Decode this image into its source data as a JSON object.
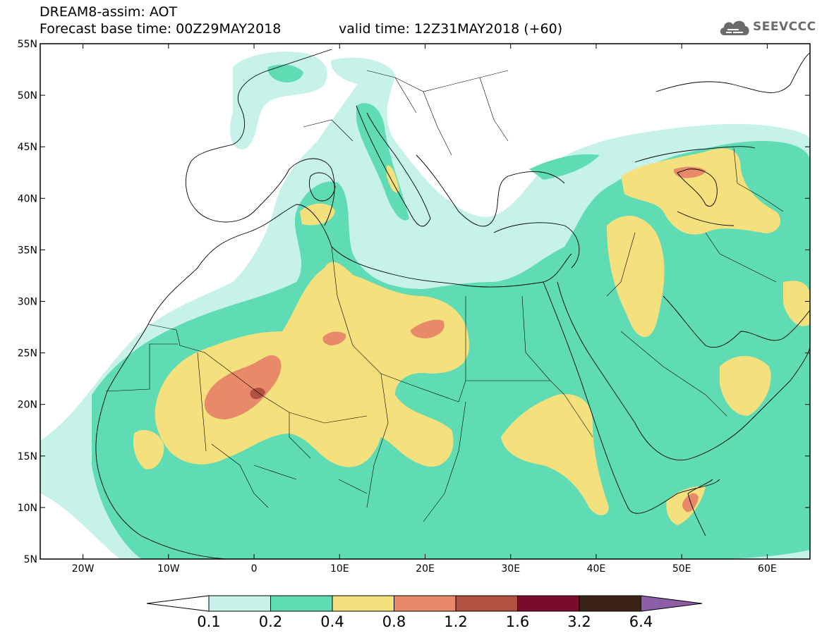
{
  "header": {
    "title_line1": "DREAM8-assim: AOT",
    "forecast_base": "Forecast base time: 00Z29MAY2018",
    "valid_time": "valid time: 12Z31MAY2018 (+60)",
    "logo_text": "SEEVCCC"
  },
  "map": {
    "projection": "lat-lon",
    "lon_range": [
      -25,
      65
    ],
    "lat_range": [
      5,
      55
    ],
    "lat_ticks": [
      "5N",
      "10N",
      "15N",
      "20N",
      "25N",
      "30N",
      "35N",
      "40N",
      "45N",
      "50N",
      "55N"
    ],
    "lon_ticks": [
      "20W",
      "10W",
      "0",
      "10E",
      "20E",
      "30E",
      "40E",
      "50E",
      "60E"
    ]
  },
  "colorbar": {
    "labels": [
      "0.1",
      "0.2",
      "0.4",
      "0.8",
      "1.2",
      "1.6",
      "3.2",
      "6.4"
    ],
    "colors": [
      "#c6f2ea",
      "#5fdcb4",
      "#f4e07c",
      "#e8896a",
      "#b1513f",
      "#7a0b2b",
      "#3a2418",
      "#8e5fa8"
    ],
    "under_color": "#ffffff",
    "over_color": "#8e5fa8"
  },
  "fields": {
    "level_0.1": "#c6f2ea",
    "level_0.2": "#5fdcb4",
    "level_0.4": "#f4e07c",
    "level_0.8": "#e8896a",
    "level_1.2": "#b1513f",
    "level_1.6": "#7a0b2b"
  }
}
